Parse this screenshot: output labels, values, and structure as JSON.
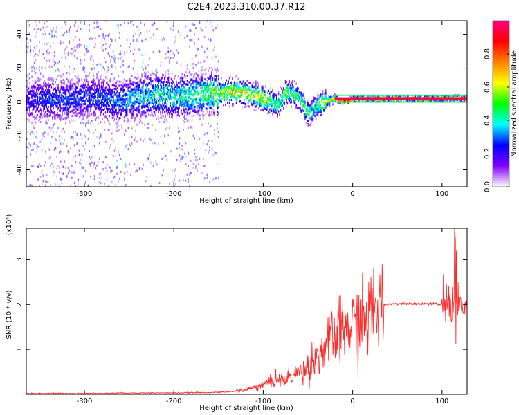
{
  "figure": {
    "title": "C2E4.2023.310.00.37.R12"
  },
  "chart_data": [
    {
      "type": "heatmap",
      "xlabel": "Height of straight line (km)",
      "ylabel": "Frequency (Hz)",
      "xlim": [
        -365,
        128
      ],
      "ylim": [
        -50,
        48
      ],
      "xticks": [
        -300,
        -200,
        -100,
        0,
        100
      ],
      "yticks": [
        -40,
        -20,
        0,
        20,
        40
      ],
      "colorbar": {
        "label": "Normalized spectral amplitude",
        "range": [
          0,
          1
        ],
        "ticks": [
          0.0,
          0.2,
          0.4,
          0.6,
          0.8
        ],
        "colors": [
          "#ffffff",
          "#8000ff",
          "#0000ff",
          "#00ffff",
          "#00ff00",
          "#ffff00",
          "#ff8000",
          "#ff0000",
          "#ff0080"
        ]
      },
      "ridge": {
        "x": [
          -360,
          -340,
          -320,
          -300,
          -280,
          -260,
          -240,
          -220,
          -200,
          -180,
          -160,
          -150,
          -140,
          -130,
          -120,
          -110,
          -100,
          -90,
          -85,
          -80,
          -75,
          -70,
          -65,
          -60,
          -55,
          -50,
          -45,
          -40,
          -35,
          -30,
          -25,
          -20,
          -15,
          -10,
          -5,
          0,
          10,
          20,
          40,
          60,
          80,
          100,
          110,
          115,
          120,
          128
        ],
        "freq": [
          1,
          2,
          1,
          3,
          2,
          0,
          3,
          4,
          3,
          4,
          5,
          5,
          6,
          6,
          5,
          4,
          2,
          0,
          -2,
          1,
          6,
          5,
          4,
          2,
          -3,
          -7,
          -5,
          -2,
          -1,
          0,
          1,
          2,
          1,
          0,
          1,
          2,
          2,
          2,
          2,
          2,
          2,
          2,
          2,
          3,
          2,
          2
        ],
        "amplitude": [
          0.25,
          0.3,
          0.3,
          0.3,
          0.3,
          0.35,
          0.4,
          0.45,
          0.45,
          0.5,
          0.55,
          0.6,
          0.7,
          0.75,
          0.7,
          0.65,
          0.7,
          0.55,
          0.5,
          0.55,
          0.6,
          0.55,
          0.5,
          0.5,
          0.55,
          0.5,
          0.45,
          0.5,
          0.6,
          0.65,
          0.7,
          0.75,
          0.8,
          0.85,
          0.9,
          0.9,
          0.92,
          0.95,
          0.95,
          0.95,
          0.95,
          0.95,
          0.85,
          0.6,
          0.9,
          0.95
        ]
      }
    },
    {
      "type": "line",
      "xlabel": "Height of straight line (km)",
      "ylabel": "SNR (10 * v/v)",
      "yscale_label": "(x10⁴)",
      "xlim": [
        -365,
        128
      ],
      "ylim": [
        0,
        3.7
      ],
      "xticks": [
        -300,
        -200,
        -100,
        0,
        100
      ],
      "yticks": [
        1,
        2,
        3
      ],
      "color": "#ff2a2a",
      "series": [
        {
          "x": [
            -365,
            -300,
            -250,
            -200,
            -160,
            -140,
            -125,
            -115,
            -105,
            -100,
            -95,
            -90,
            -85,
            -80,
            -75,
            -70,
            -65,
            -60,
            -55,
            -50,
            -45,
            -40,
            -35,
            -30,
            -25,
            -20,
            -15,
            -10,
            -5,
            0,
            5,
            10,
            15,
            20,
            25,
            30,
            35,
            40,
            50,
            60,
            70,
            80,
            90,
            100,
            105,
            108,
            110,
            112,
            114,
            116,
            118,
            120,
            128
          ],
          "y": [
            0.02,
            0.02,
            0.03,
            0.03,
            0.04,
            0.05,
            0.08,
            0.12,
            0.18,
            0.22,
            0.25,
            0.28,
            0.35,
            0.3,
            0.32,
            0.4,
            0.45,
            0.5,
            0.55,
            0.65,
            0.75,
            0.85,
            0.95,
            1.05,
            1.2,
            1.25,
            1.35,
            1.45,
            1.5,
            1.55,
            1.6,
            1.65,
            1.7,
            1.8,
            1.9,
            1.95,
            2.0,
            2.01,
            2.02,
            2.02,
            2.02,
            2.02,
            2.01,
            2.0,
            2.02,
            2.05,
            2.15,
            1.9,
            2.4,
            1.9,
            2.0,
            1.95,
            1.94
          ]
        }
      ]
    }
  ]
}
